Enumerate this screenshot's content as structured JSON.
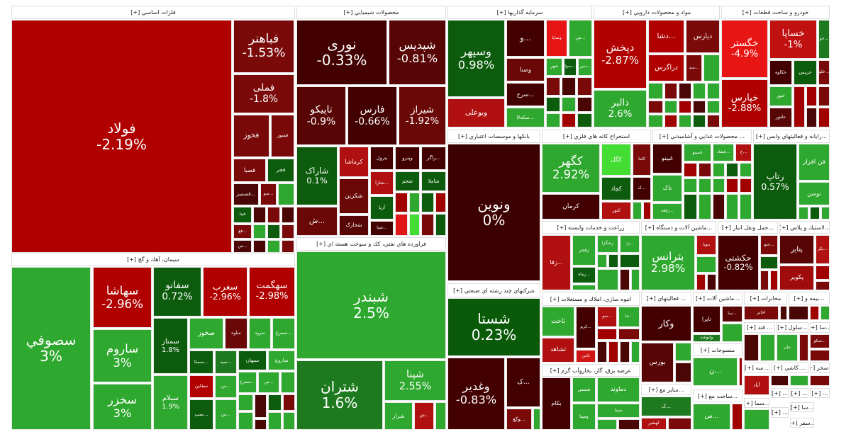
{
  "colors": {
    "dark_red": "#4a0505",
    "red": "#b00000",
    "bright_red": "#e81515",
    "maroon": "#7a0a0a",
    "green": "#2ea82e",
    "dark_green": "#0d5c0d",
    "bright_green": "#44dd33"
  },
  "sectors": [
    {
      "title": "فلزات اساسي [+]",
      "tiles": [
        {
          "symbol": "فولاد",
          "change": "-2.19%",
          "color": "#b00000"
        },
        {
          "symbol": "فباهنر",
          "change": "-1.53%",
          "color": "#7a0a0a"
        },
        {
          "symbol": "فملی",
          "change": "-1.8%",
          "color": "#7a0a0a"
        },
        {
          "symbol": "فخوز",
          "change": "",
          "color": "#7a0a0a"
        },
        {
          "symbol": "فسوز",
          "change": "",
          "color": "#7a0a0a"
        },
        {
          "symbol": "فصبا",
          "change": "",
          "color": "#7a0a0a"
        },
        {
          "symbol": "فجر",
          "change": "",
          "color": "#0d5c0d"
        },
        {
          "symbol": "...فسمیز",
          "change": "",
          "color": "#4a0505"
        },
        {
          "symbol": "...سو",
          "change": "",
          "color": "#7a0a0a"
        },
        {
          "symbol": "فیتا",
          "change": "",
          "color": "#0d5c0d"
        },
        {
          "symbol": "...فغ",
          "change": "",
          "color": "#7a0a0a"
        },
        {
          "symbol": "...س",
          "change": "",
          "color": "#4a0505"
        }
      ]
    },
    {
      "title": "محصولات شيميايي [+]",
      "tiles": [
        {
          "symbol": "نوری",
          "change": "-0.33%",
          "color": "#420000"
        },
        {
          "symbol": "شپدیس",
          "change": "-0.81%",
          "color": "#580505"
        },
        {
          "symbol": "تاپیکو",
          "change": "-0.9%",
          "color": "#580505"
        },
        {
          "symbol": "فارس",
          "change": "-0.66%",
          "color": "#420000"
        },
        {
          "symbol": "شیراز",
          "change": "-1.92%",
          "color": "#6a0808"
        },
        {
          "symbol": "شاراک",
          "change": "0.1%",
          "color": "#0d5c0d"
        },
        {
          "symbol": "کرماشا",
          "change": "",
          "color": "#b01010"
        },
        {
          "symbol": "شکربن",
          "change": "",
          "color": "#6a0808"
        },
        {
          "symbol": "شخارک",
          "change": "",
          "color": "#580505"
        },
        {
          "symbol": "پترول",
          "change": "",
          "color": "#420000"
        },
        {
          "symbol": "وپترو",
          "change": "",
          "color": "#420000"
        },
        {
          "symbol": "...زاگر",
          "change": "",
          "color": "#420000"
        },
        {
          "symbol": "...شارا",
          "change": "",
          "color": "#b01010"
        },
        {
          "symbol": "شجم",
          "change": "",
          "color": "#0d5c0d"
        },
        {
          "symbol": "شاملا",
          "change": "",
          "color": "#0d5c0d"
        },
        {
          "symbol": "آریا",
          "change": "",
          "color": "#0d5c0d"
        },
        {
          "symbol": "...شپا",
          "change": "",
          "color": "#420000"
        },
        {
          "symbol": "...ش",
          "change": "",
          "color": "#6a0808"
        }
      ]
    },
    {
      "title": "فراورده هاي نفتي، كك و سوخت هسته اي [+]",
      "tiles": [
        {
          "symbol": "شبندر",
          "change": "2.5%",
          "color": "#2ea82e"
        },
        {
          "symbol": "شتران",
          "change": "1.6%",
          "color": "#1e7a1e"
        },
        {
          "symbol": "شپنا",
          "change": "2.55%",
          "color": "#2ea82e"
        },
        {
          "symbol": "شراز",
          "change": "",
          "color": "#2ea82e"
        },
        {
          "symbol": "...ش",
          "change": "",
          "color": "#b01010"
        }
      ]
    },
    {
      "title": "سيمان، آهك و گچ [+]",
      "tiles": [
        {
          "symbol": "سصوفي",
          "change": "3%",
          "color": "#2ea82e"
        },
        {
          "symbol": "سهاشا",
          "change": "-2.96%",
          "color": "#b00000"
        },
        {
          "symbol": "ساروم",
          "change": "3%",
          "color": "#2ea82e"
        },
        {
          "symbol": "سخزر",
          "change": "3%",
          "color": "#2ea82e"
        },
        {
          "symbol": "سفانو",
          "change": "0.72%",
          "color": "#0d5c0d"
        },
        {
          "symbol": "سمتاز",
          "change": "1.8%",
          "color": "#0d5c0d"
        },
        {
          "symbol": "سیلام",
          "change": "1.9%",
          "color": "#2ea82e"
        },
        {
          "symbol": "سغرب",
          "change": "-2.96%",
          "color": "#b00000"
        },
        {
          "symbol": "سهگمت",
          "change": "-2.98%",
          "color": "#b00000"
        },
        {
          "symbol": "صخوز",
          "change": "",
          "color": "#2ea82e"
        },
        {
          "symbol": "ساوه",
          "change": "",
          "color": "#6a0808"
        },
        {
          "symbol": "سرود",
          "change": "",
          "color": "#2ea82e"
        },
        {
          "symbol": "...سمرغ",
          "change": "",
          "color": "#2ea82e"
        },
        {
          "symbol": "...سمتا",
          "change": "",
          "color": "#0d5c0d"
        },
        {
          "symbol": "...سپه",
          "change": "",
          "color": "#1e7a1e"
        },
        {
          "symbol": "سبهان",
          "change": "",
          "color": "#0d5c0d"
        },
        {
          "symbol": "ساروج",
          "change": "",
          "color": "#2ea82e"
        },
        {
          "symbol": "سقاین",
          "change": "",
          "color": "#b00000"
        },
        {
          "symbol": "...س",
          "change": "",
          "color": "#2ea82e"
        },
        {
          "symbol": "...سمرغ",
          "change": "",
          "color": "#2ea82e"
        },
        {
          "symbol": "...س",
          "change": "",
          "color": "#2ea82e"
        },
        {
          "symbol": "...سپ",
          "change": "",
          "color": "#0d5c0d"
        },
        {
          "symbol": "...س",
          "change": "",
          "color": "#2ea82e"
        }
      ]
    },
    {
      "title": "سرمايه گذاريها [+]",
      "tiles": [
        {
          "symbol": "وسپهر",
          "change": "0.98%",
          "color": "#0d5c0d"
        },
        {
          "symbol": "وبوعلی",
          "change": "",
          "color": "#b01010"
        },
        {
          "symbol": "...و",
          "change": "",
          "color": "#420000"
        },
        {
          "symbol": "وسایا",
          "change": "",
          "color": "#e81515"
        },
        {
          "symbol": "...س",
          "change": "",
          "color": "#2ea82e"
        },
        {
          "symbol": "وصنا",
          "change": "",
          "color": "#6a0808"
        },
        {
          "symbol": "...سرح",
          "change": "",
          "color": "#420000"
        },
        {
          "symbol": "...سکه0",
          "change": "",
          "color": "#2ea82e"
        },
        {
          "symbol": "شهر",
          "change": "",
          "color": "#2ea82e"
        },
        {
          "symbol": "...سوا",
          "change": "",
          "color": "#0d5c0d"
        },
        {
          "symbol": "...سپر",
          "change": "",
          "color": "#2ea82e"
        }
      ]
    },
    {
      "title": "مواد و محصولات دارويي [+]",
      "tiles": [
        {
          "symbol": "دپخش",
          "change": "-2.87%",
          "color": "#b00000"
        },
        {
          "symbol": "دالبر",
          "change": "2.6%",
          "color": "#2ea82e"
        },
        {
          "symbol": "...دشا",
          "change": "",
          "color": "#b00000"
        },
        {
          "symbol": "دیارس",
          "change": "",
          "color": "#7a0a0a"
        },
        {
          "symbol": "دراگرس",
          "change": "",
          "color": "#b00000"
        },
        {
          "symbol": "...سد",
          "change": "",
          "color": "#7a0a0a"
        }
      ]
    },
    {
      "title": "خودرو و ساخت قطعات [+]",
      "tiles": [
        {
          "symbol": "خگستر",
          "change": "-4.9%",
          "color": "#e81515"
        },
        {
          "symbol": "خپارس",
          "change": "-2.88%",
          "color": "#b00000"
        },
        {
          "symbol": "خساپا",
          "change": "-1%",
          "color": "#c01010"
        },
        {
          "symbol": "...خو",
          "change": "",
          "color": "#1e7a1e"
        },
        {
          "symbol": "خکاوه",
          "change": "",
          "color": "#420000"
        },
        {
          "symbol": "خریس",
          "change": "",
          "color": "#0d5c0d"
        },
        {
          "symbol": "...خلو",
          "change": "",
          "color": "#7a0a0a"
        },
        {
          "symbol": "خنور",
          "change": "",
          "color": "#2ea82e"
        },
        {
          "symbol": "خلنور",
          "change": "",
          "color": "#580505"
        }
      ]
    },
    {
      "title": "بانكها و موسسات اعتباري [+]",
      "tiles": [
        {
          "symbol": "ونوين",
          "change": "0%",
          "color": "#3d0000"
        }
      ]
    },
    {
      "title": "شركتهاي چند رشته اي صنعتي [+]",
      "tiles": [
        {
          "symbol": "شستا",
          "change": "0.23%",
          "color": "#0a5a0a"
        },
        {
          "symbol": "وغدير",
          "change": "-0.83%",
          "color": "#420000"
        },
        {
          "symbol": "...ک",
          "change": "",
          "color": "#420000"
        },
        {
          "symbol": "...وکغ",
          "change": "",
          "color": "#7a0a0a"
        }
      ]
    },
    {
      "title": "استخراج كانه هاي فلزي [+]",
      "tiles": [
        {
          "symbol": "کگهر",
          "change": "2.92%",
          "color": "#2ea82e"
        },
        {
          "symbol": "کرمان",
          "change": "",
          "color": "#420000"
        },
        {
          "symbol": "کگل",
          "change": "",
          "color": "#44dd33"
        },
        {
          "symbol": "کاما",
          "change": "",
          "color": "#7a0a0a"
        },
        {
          "symbol": "کچاد",
          "change": "",
          "color": "#0d5c0d"
        },
        {
          "symbol": "...ک",
          "change": "",
          "color": "#420000"
        },
        {
          "symbol": "کنور",
          "change": "",
          "color": "#b01010"
        }
      ]
    },
    {
      "title": "... محصولات غذايي و آشاميدني [+]",
      "tiles": [
        {
          "symbol": "غبینو",
          "change": "",
          "color": "#420000"
        },
        {
          "symbol": "تاک",
          "change": "",
          "color": "#2ea82e"
        },
        {
          "symbol": "...زفعه",
          "change": "",
          "color": "#2ea82e"
        },
        {
          "symbol": "غمینو",
          "change": "",
          "color": "#2ea82e"
        },
        {
          "symbol": "...غشاد",
          "change": "",
          "color": "#2ea82e"
        },
        {
          "symbol": "...غ",
          "change": "",
          "color": "#b01010"
        }
      ]
    },
    {
      "title": "...رايانه و فعاليتهاي وابس [+]",
      "tiles": [
        {
          "symbol": "رتاپ",
          "change": "0.57%",
          "color": "#0d5c0d"
        },
        {
          "symbol": "فن افزار",
          "change": "",
          "color": "#2ea82e"
        },
        {
          "symbol": "توسن",
          "change": "",
          "color": "#2ea82e"
        }
      ]
    },
    {
      "title": "زراعت و خدمات وابسته [+]",
      "tiles": [
        {
          "symbol": "...زقا",
          "change": "",
          "color": "#b01010"
        },
        {
          "symbol": "زفجر",
          "change": "",
          "color": "#2ea82e"
        },
        {
          "symbol": "زشگزا",
          "change": "",
          "color": "#2ea82e"
        },
        {
          "symbol": "...زد",
          "change": "",
          "color": "#2ea82e"
        },
        {
          "symbol": "...زماه",
          "change": "",
          "color": "#0d5c0d"
        }
      ]
    },
    {
      "title": "...ماشين آلات و دستگاه [+]",
      "tiles": [
        {
          "symbol": "بترانس",
          "change": "2.98%",
          "color": "#2ea82e"
        },
        {
          "symbol": "بنوبا",
          "change": "",
          "color": "#b01010"
        }
      ]
    },
    {
      "title": "...حمل ونقل انبار [+]",
      "tiles": [
        {
          "symbol": "حکشتی",
          "change": "-0.82%",
          "color": "#420000"
        },
        {
          "symbol": "...حتو",
          "change": "",
          "color": "#7a0a0a"
        }
      ]
    },
    {
      "title": "...لاستيك و پلاس [+]",
      "tiles": [
        {
          "symbol": "پتایر",
          "change": "",
          "color": "#580505"
        },
        {
          "symbol": "...پکر",
          "change": "",
          "color": "#b01010"
        },
        {
          "symbol": "پکویر",
          "change": "",
          "color": "#a00c0c"
        }
      ]
    },
    {
      "title": "انبوه سازي، املاك و مستغلات [+]",
      "tiles": [
        {
          "symbol": "ثاخت",
          "change": "",
          "color": "#2ea82e"
        },
        {
          "symbol": "...کرم",
          "change": "",
          "color": "#420000"
        },
        {
          "symbol": "...سو",
          "change": "",
          "color": "#b01010"
        },
        {
          "symbol": "...ثبا",
          "change": "",
          "color": "#2ea82e"
        },
        {
          "symbol": "ثشاهد",
          "change": "",
          "color": "#b01010"
        },
        {
          "symbol": "ثامن",
          "change": "",
          "color": "#d01515"
        }
      ]
    },
    {
      "title": "عرضه برق، گاز، بخاروآب گرم [+]",
      "tiles": [
        {
          "symbol": "بکام",
          "change": "",
          "color": "#420000"
        },
        {
          "symbol": "شمس",
          "change": "",
          "color": "#2ea82e"
        },
        {
          "symbol": "دماوند",
          "change": "",
          "color": "#2ea82e"
        },
        {
          "symbol": "بمپنا",
          "change": "",
          "color": "#2ea82e"
        },
        {
          "symbol": "ومپنا",
          "change": "",
          "color": "#2ea82e"
        }
      ]
    },
    {
      "title": "... فعاليتهاي [+]",
      "tiles": [
        {
          "symbol": "وکار",
          "change": "",
          "color": "#420000"
        },
        {
          "symbol": "بورس",
          "change": "",
          "color": "#580505"
        }
      ]
    },
    {
      "title": "...ماشين آلات [+]",
      "tiles": [
        {
          "symbol": "تاپرا",
          "change": "",
          "color": "#420000"
        },
        {
          "symbol": "...سا",
          "change": "",
          "color": "#580505"
        },
        {
          "symbol": "ولتوشه",
          "change": "",
          "color": "#1e7a1e"
        }
      ]
    },
    {
      "title": "منسوجات [+]",
      "tiles": [
        {
          "symbol": "...ن",
          "change": "",
          "color": "#2ea82e"
        }
      ]
    },
    {
      "title": "...ساير مع [+]",
      "tiles": [
        {
          "symbol": "...ک",
          "change": "",
          "color": "#1e7a1e"
        },
        {
          "symbol": "کهشیر",
          "change": "",
          "color": "#b01010"
        }
      ]
    },
    {
      "title": "...ساخت مع [+]",
      "tiles": [
        {
          "symbol": "...س",
          "change": "",
          "color": "#2ea82e"
        }
      ]
    },
    {
      "title": "مخابرات [+]",
      "tiles": [
        {
          "symbol": "اخابر",
          "change": "",
          "color": "#7a0a0a"
        }
      ]
    },
    {
      "title": "...بيمه و [+]",
      "tiles": []
    },
    {
      "title": "... قند [+]",
      "tiles": []
    },
    {
      "title": "...سلول [+]",
      "tiles": [
        {
          "symbol": "تیان",
          "change": "",
          "color": "#2ea82e"
        }
      ]
    },
    {
      "title": "...سا [+]",
      "tiles": [
        {
          "symbol": "...سکو",
          "change": "",
          "color": "#7a0a0a"
        }
      ]
    },
    {
      "title": "...سه [+]",
      "tiles": [
        {
          "symbol": "آباد",
          "change": "",
          "color": "#b01010"
        }
      ]
    },
    {
      "title": "... كاشي [+]",
      "tiles": []
    },
    {
      "title": "...سخر [+]",
      "tiles": []
    },
    {
      "title": "... [+]",
      "tiles": []
    },
    {
      "title": "... [+]",
      "tiles": []
    },
    {
      "title": "... [+]",
      "tiles": []
    },
    {
      "title": "...سما [+]",
      "tiles": []
    },
    {
      "title": "...سا [+]",
      "tiles": []
    },
    {
      "title": "... [+]",
      "tiles": []
    },
    {
      "title": "...سفر [+]",
      "tiles": []
    }
  ]
}
